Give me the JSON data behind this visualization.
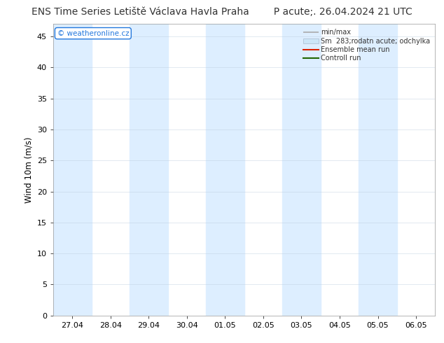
{
  "title_left": "ENS Time Series Letiště Václava Havla Praha",
  "title_right": "P acute;. 26.04.2024 21 UTC",
  "ylabel": "Wind 10m (m/s)",
  "bg_color": "#ffffff",
  "plot_bg_color": "#ffffff",
  "ylim": [
    0,
    47
  ],
  "yticks": [
    0,
    5,
    10,
    15,
    20,
    25,
    30,
    35,
    40,
    45
  ],
  "xtick_labels": [
    "27.04",
    "28.04",
    "29.04",
    "30.04",
    "01.05",
    "02.05",
    "03.05",
    "04.05",
    "05.05",
    "06.05"
  ],
  "shade_x_indices": [
    0,
    2,
    4,
    6,
    8
  ],
  "shade_color": "#ddeeff",
  "watermark_text": "© weatheronline.cz",
  "watermark_color": "#2277dd",
  "watermark_border_color": "#2277dd",
  "minmax_color": "#aaaaaa",
  "sm_color": "#cce6f8",
  "ens_color": "#dd2200",
  "ctrl_color": "#226600",
  "legend_labels": [
    "min/max",
    "Sm  283;rodatn acute; odchylka",
    "Ensemble mean run",
    "Controll run"
  ],
  "grid_color": "#bbccdd",
  "grid_alpha": 0.6,
  "title_fontsize": 10,
  "axis_fontsize": 8.5,
  "tick_fontsize": 8
}
